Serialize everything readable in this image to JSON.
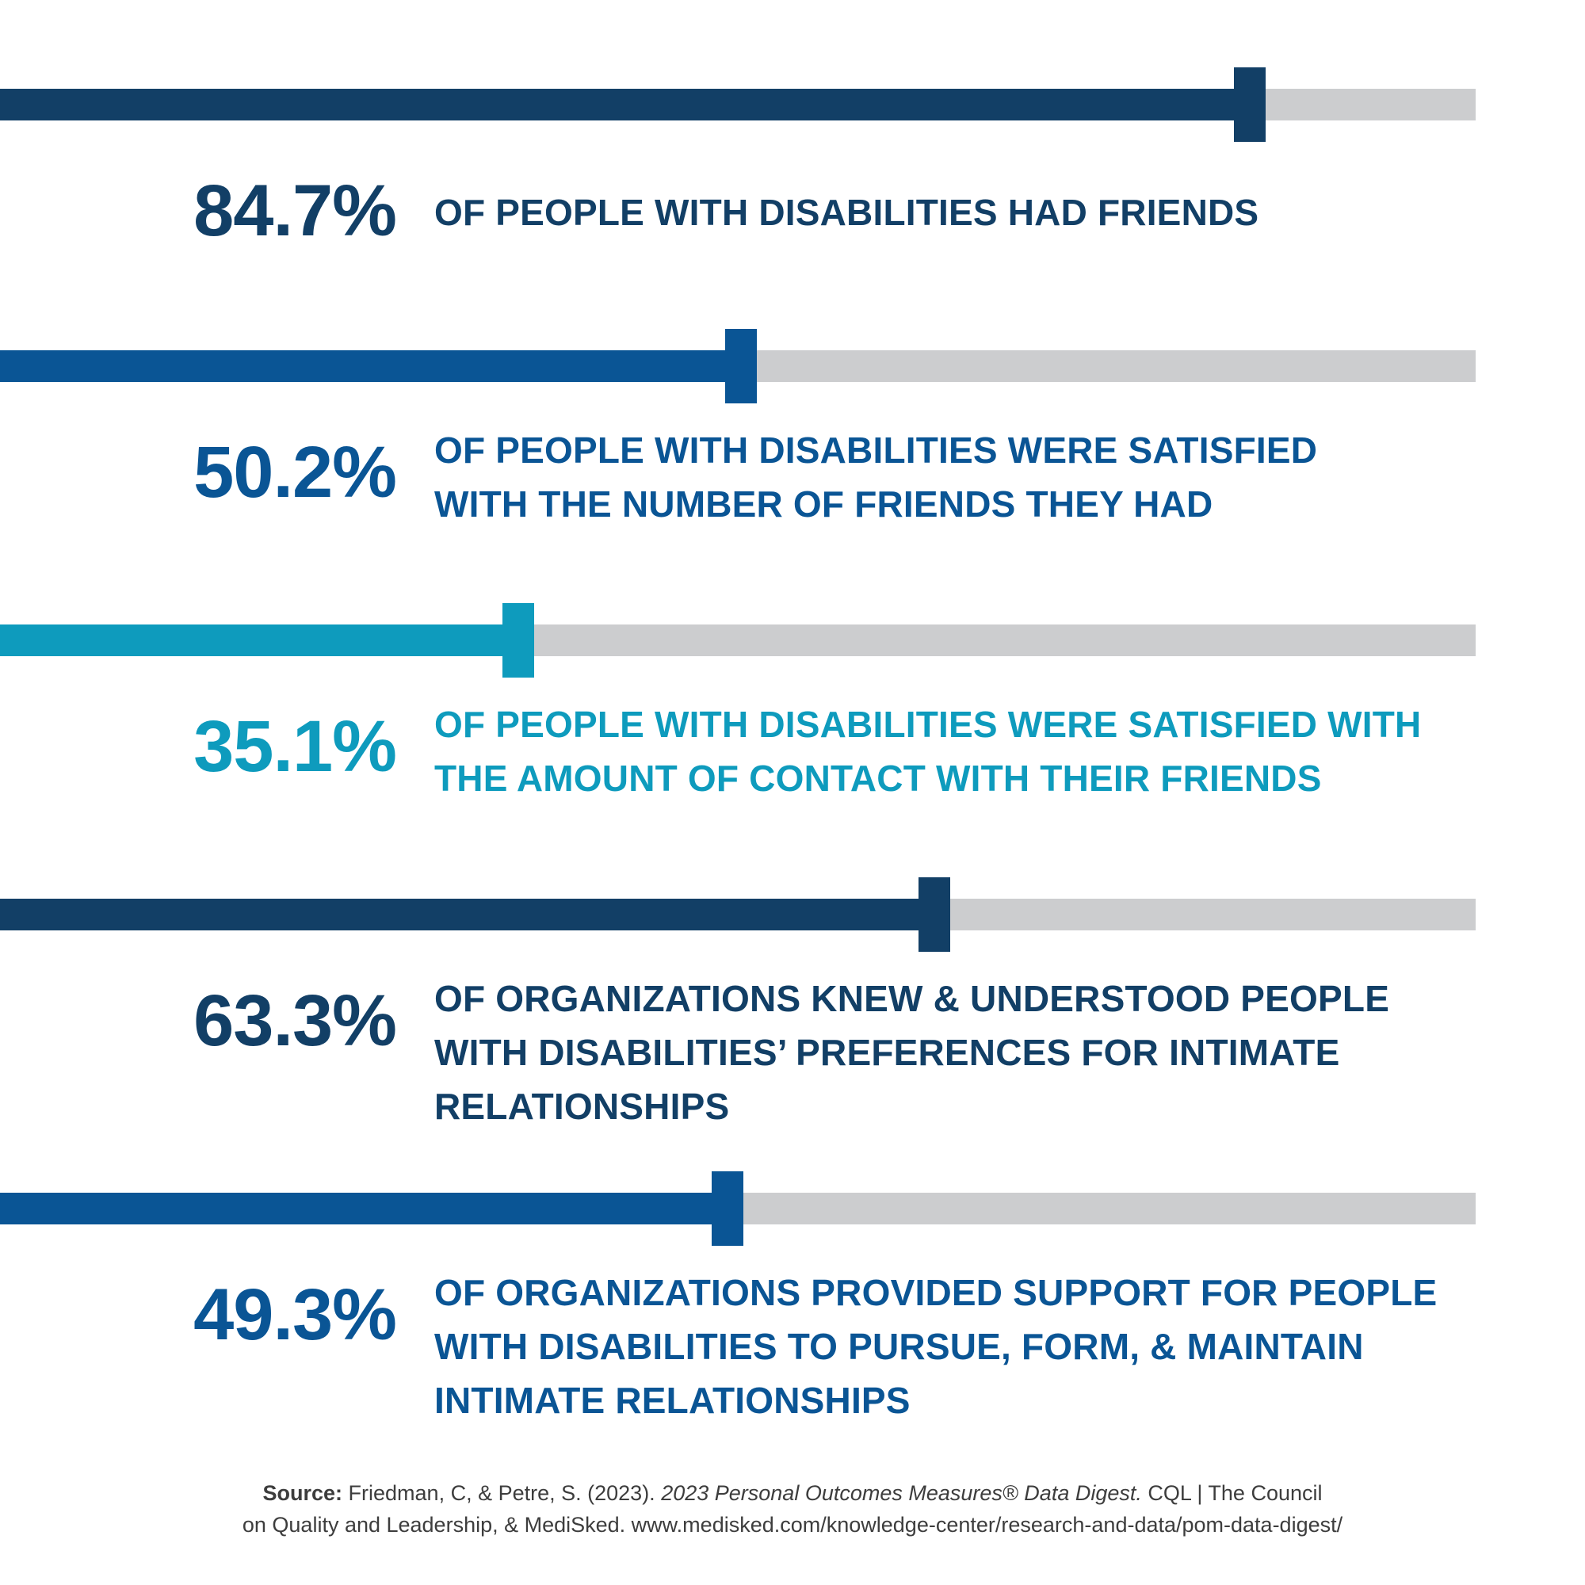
{
  "chart_data": {
    "type": "bar",
    "orientation": "horizontal",
    "xlim": [
      0,
      100
    ],
    "unit": "%",
    "colors": {
      "track": "#cccdcf",
      "navy": "#123f66",
      "blue": "#0a5595",
      "teal": "#0e9bbd"
    },
    "stats": [
      {
        "value": 84.7,
        "value_label": "84.7%",
        "color": "#123f66",
        "lines": [
          "OF PEOPLE WITH DISABILITIES HAD FRIENDS"
        ]
      },
      {
        "value": 50.2,
        "value_label": "50.2%",
        "color": "#0a5595",
        "lines": [
          "OF PEOPLE WITH DISABILITIES WERE SATISFIED",
          "WITH THE NUMBER OF FRIENDS THEY HAD"
        ]
      },
      {
        "value": 35.1,
        "value_label": "35.1%",
        "color": "#0e9bbd",
        "lines": [
          "OF PEOPLE WITH DISABILITIES WERE SATISFIED WITH",
          "THE AMOUNT OF CONTACT WITH THEIR FRIENDS"
        ]
      },
      {
        "value": 63.3,
        "value_label": "63.3%",
        "color": "#123f66",
        "lines": [
          "OF ORGANIZATIONS KNEW & UNDERSTOOD PEOPLE",
          "WITH DISABILITIES’ PREFERENCES FOR INTIMATE",
          "RELATIONSHIPS"
        ]
      },
      {
        "value": 49.3,
        "value_label": "49.3%",
        "color": "#0a5595",
        "lines": [
          "OF ORGANIZATIONS PROVIDED SUPPORT FOR PEOPLE",
          "WITH DISABILITIES TO PURSUE, FORM, & MAINTAIN",
          "INTIMATE RELATIONSHIPS"
        ]
      }
    ]
  },
  "source": {
    "label": "Source:",
    "text_a": " Friedman, C, & Petre, S. (2023). ",
    "title": "2023 Personal Outcomes Measures® Data Digest.",
    "text_b": " CQL | The Council",
    "line2": "on Quality and Leadership, & MediSked. www.medisked.com/knowledge-center/research-and-data/pom-data-digest/"
  }
}
